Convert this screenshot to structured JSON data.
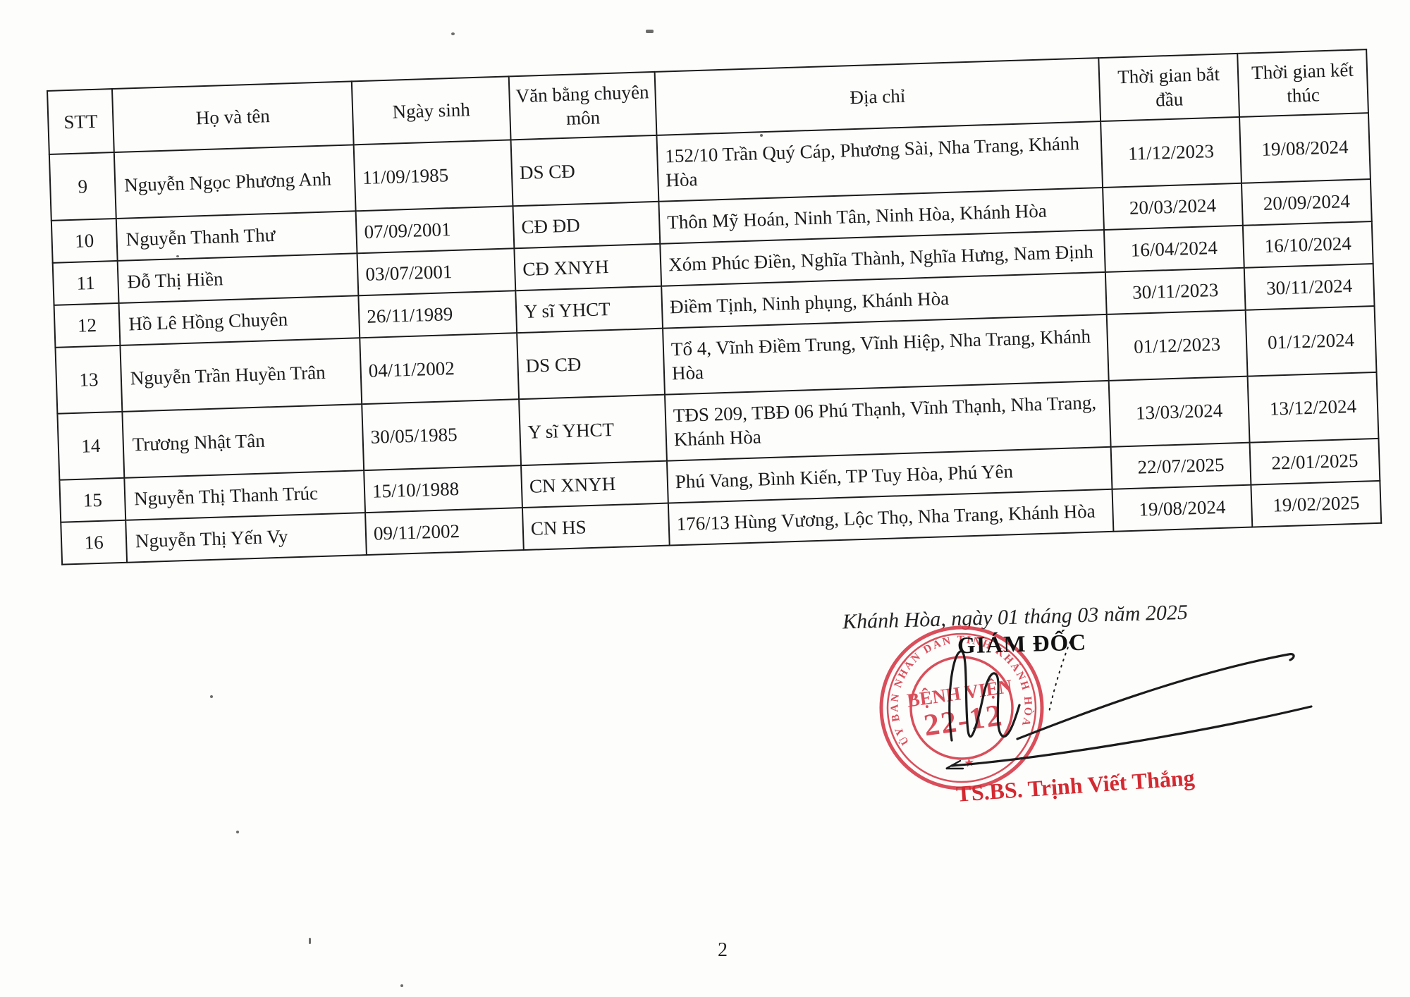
{
  "table": {
    "headers": [
      "STT",
      "Họ và tên",
      "Ngày sinh",
      "Văn bằng chuyên môn",
      "Địa chỉ",
      "Thời gian bắt đầu",
      "Thời gian kết thúc"
    ],
    "rows": [
      [
        "9",
        "Nguyễn Ngọc Phương Anh",
        "11/09/1985",
        "DS CĐ",
        "152/10 Trần Quý Cáp, Phương Sài, Nha Trang, Khánh Hòa",
        "11/12/2023",
        "19/08/2024"
      ],
      [
        "10",
        "Nguyễn Thanh Thư",
        "07/09/2001",
        "CĐ ĐD",
        "Thôn Mỹ Hoán, Ninh Tân, Ninh Hòa, Khánh Hòa",
        "20/03/2024",
        "20/09/2024"
      ],
      [
        "11",
        "Đỗ Thị Hiền",
        "03/07/2001",
        "CĐ XNYH",
        "Xóm Phúc Điền, Nghĩa Thành, Nghĩa Hưng, Nam Định",
        "16/04/2024",
        "16/10/2024"
      ],
      [
        "12",
        "Hồ Lê Hồng Chuyên",
        "26/11/1989",
        "Y sĩ YHCT",
        "Điềm Tịnh, Ninh phụng, Khánh Hòa",
        "30/11/2023",
        "30/11/2024"
      ],
      [
        "13",
        "Nguyễn Trần Huyền Trân",
        "04/11/2002",
        "DS CĐ",
        "Tổ 4, Vĩnh Điềm Trung, Vĩnh Hiệp, Nha Trang, Khánh Hòa",
        "01/12/2023",
        "01/12/2024"
      ],
      [
        "14",
        "Trương Nhật Tân",
        "30/05/1985",
        "Y sĩ YHCT",
        "TĐS 209, TBĐ 06 Phú Thạnh, Vĩnh Thạnh, Nha Trang, Khánh Hòa",
        "13/03/2024",
        "13/12/2024"
      ],
      [
        "15",
        "Nguyễn Thị Thanh Trúc",
        "15/10/1988",
        "CN XNYH",
        "Phú Vang, Bình Kiến, TP Tuy Hòa, Phú Yên",
        "22/07/2025",
        "22/01/2025"
      ],
      [
        "16",
        "Nguyễn Thị Yến Vy",
        "09/11/2002",
        "CN HS",
        "176/13 Hùng Vương, Lộc Thọ, Nha Trang, Khánh Hòa",
        "19/08/2024",
        "19/02/2025"
      ]
    ]
  },
  "footer": {
    "date_line": "Khánh Hòa, ngày 01 tháng 03 năm 2025",
    "signer_title": "GIÁM ĐỐC",
    "signer_name": "TS.BS. Trịnh Viết Thắng",
    "page_number": "2"
  },
  "stamp": {
    "ring_text": "ỦY BAN NHÂN DÂN TỈNH KHÁNH HÒA",
    "center_line1": "BỆNH VIỆN",
    "center_line2": "22-12",
    "star": "★"
  },
  "colors": {
    "stamp_red": "#d63c49",
    "signer_red": "#d32a31",
    "ink": "#1c1c1c"
  }
}
